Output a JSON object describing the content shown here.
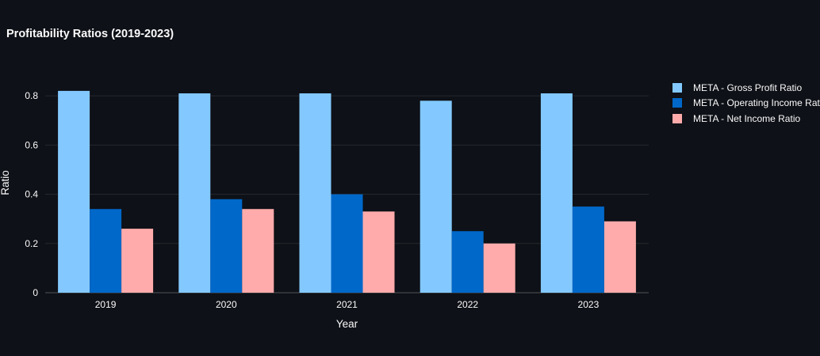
{
  "title": "Profitability Ratios (2019-2023)",
  "chart_data": {
    "type": "bar",
    "title": "Profitability Ratios (2019-2023)",
    "xlabel": "Year",
    "ylabel": "Ratio",
    "categories": [
      "2019",
      "2020",
      "2021",
      "2022",
      "2023"
    ],
    "series": [
      {
        "name": "META - Gross Profit Ratio",
        "color": "#83c9ff",
        "values": [
          0.82,
          0.81,
          0.81,
          0.78,
          0.81
        ]
      },
      {
        "name": "META - Operating Income Ratio",
        "color": "#0068c9",
        "values": [
          0.34,
          0.38,
          0.4,
          0.25,
          0.35
        ]
      },
      {
        "name": "META - Net Income Ratio",
        "color": "#ffabab",
        "values": [
          0.26,
          0.34,
          0.33,
          0.2,
          0.29
        ]
      }
    ],
    "ylim": [
      0,
      0.9
    ],
    "yticks": [
      0,
      0.2,
      0.4,
      0.6,
      0.8
    ],
    "ytick_labels": [
      "0",
      "0.2",
      "0.4",
      "0.6",
      "0.8"
    ],
    "grid": true,
    "legend_position": "right"
  },
  "colors": {
    "background": "#0e1117",
    "text": "#fafafa",
    "grid_line": "rgba(250,250,250,0.10)",
    "zero_line": "rgba(250,250,250,0.28)"
  }
}
